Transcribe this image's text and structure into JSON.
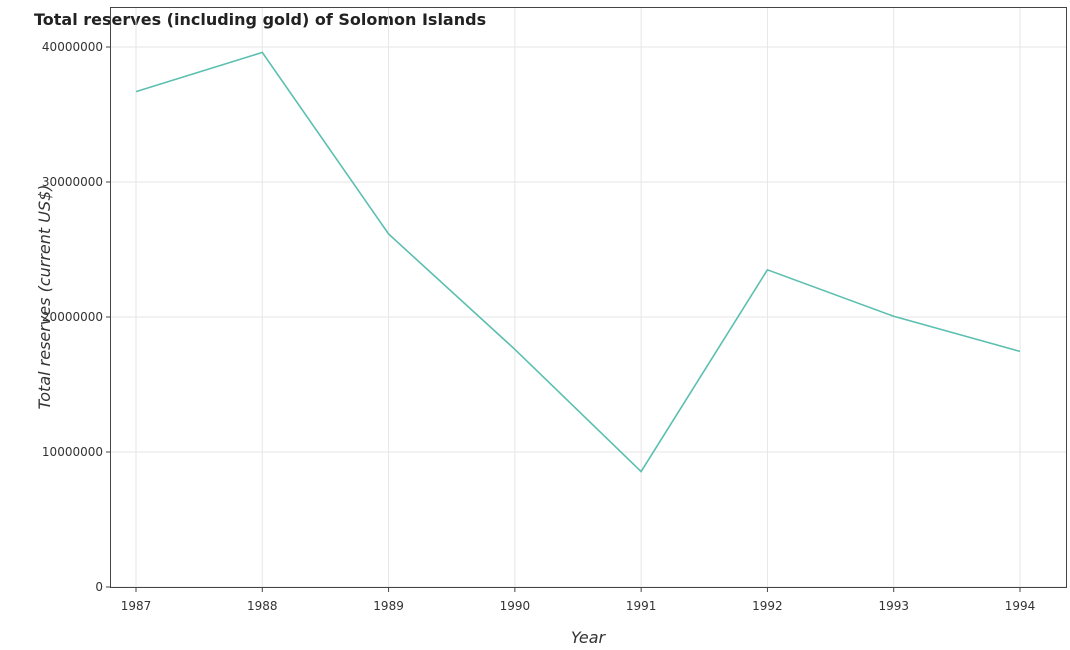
{
  "chart_data": {
    "type": "line",
    "title": "Total reserves (including gold) of Solomon Islands",
    "xlabel": "Year",
    "ylabel": "Total reserves (current US$)",
    "categories": [
      "1987",
      "1988",
      "1989",
      "1990",
      "1991",
      "1992",
      "1993",
      "1994"
    ],
    "series": [
      {
        "values": [
          36700000,
          39600000,
          26150000,
          17600000,
          8550000,
          23500000,
          20050000,
          17450000
        ]
      }
    ],
    "ylim": [
      0,
      40000000
    ],
    "yticks": [
      0,
      10000000,
      20000000,
      30000000,
      40000000
    ],
    "ytick_labels": [
      "0",
      "10000000",
      "20000000",
      "30000000",
      "40000000"
    ],
    "grid": true,
    "line_color": "#5bbfb0"
  }
}
